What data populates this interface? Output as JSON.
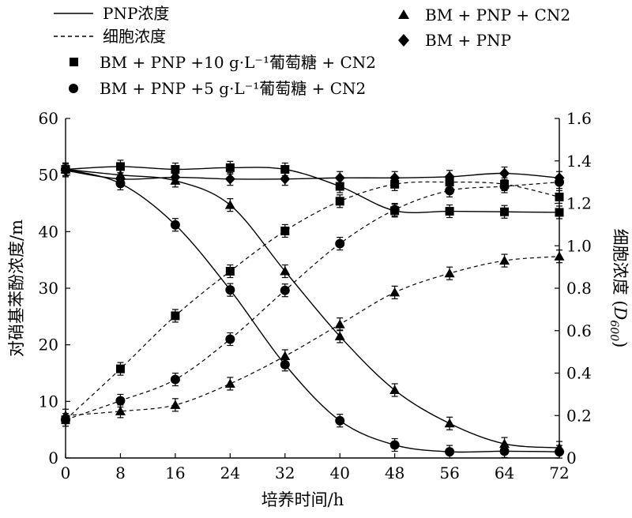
{
  "chart_data": {
    "type": "line",
    "title": "",
    "xlabel": "培养时间/h",
    "ylabel": "对硝基苯酚浓度/m",
    "ylabel_right_prefix": "细胞浓度 (",
    "ylabel_right_var": "D",
    "ylabel_right_sub": "600",
    "ylabel_right_suffix": ")",
    "xlim": [
      0,
      72
    ],
    "ylim": [
      0,
      60
    ],
    "ylim_right": [
      0,
      1.6
    ],
    "x_ticks": [
      "0",
      "8",
      "16",
      "24",
      "32",
      "40",
      "48",
      "56",
      "64",
      "72"
    ],
    "y_ticks": [
      "0",
      "10",
      "20",
      "30",
      "40",
      "50",
      "60"
    ],
    "y_right_ticks": [
      "0",
      "0.2",
      "0.4",
      "0.6",
      "0.8",
      "1.0",
      "1.2",
      "1.4",
      "1.6"
    ],
    "grid": false,
    "legend_position": "top",
    "legend": {
      "line_solid": "PNP浓度",
      "line_dashed": "细胞浓度",
      "square": "BM + PNP +10 g·L⁻¹葡萄糖 + CN2",
      "circle": "BM + PNP +5 g·L⁻¹葡萄糖 + CN2",
      "triangle": "BM + PNP + CN2",
      "diamond": "BM + PNP"
    },
    "x": [
      0,
      8,
      16,
      24,
      32,
      40,
      48,
      56,
      64,
      72
    ],
    "series": [
      {
        "marker": "square",
        "quantity": "PNP",
        "axis": "left",
        "values": [
          51.0,
          51.5,
          51.0,
          51.3,
          51.0,
          48.0,
          43.7,
          43.6,
          43.5,
          43.4
        ]
      },
      {
        "marker": "circle",
        "quantity": "PNP",
        "axis": "left",
        "values": [
          51.0,
          48.5,
          41.2,
          29.7,
          16.5,
          6.6,
          2.3,
          1.1,
          1.2,
          1.1
        ]
      },
      {
        "marker": "triangle",
        "quantity": "PNP",
        "axis": "left",
        "values": [
          51.0,
          50.0,
          49.0,
          44.7,
          33.0,
          21.5,
          12.0,
          6.1,
          2.5,
          1.8
        ]
      },
      {
        "marker": "diamond",
        "quantity": "PNP",
        "axis": "left",
        "values": [
          50.8,
          49.3,
          49.6,
          49.3,
          49.3,
          49.5,
          49.5,
          49.7,
          50.3,
          49.5
        ]
      },
      {
        "marker": "square",
        "quantity": "cell",
        "axis": "right",
        "values": [
          0.18,
          0.42,
          0.67,
          0.88,
          1.07,
          1.21,
          1.29,
          1.3,
          1.29,
          1.23
        ]
      },
      {
        "marker": "circle",
        "quantity": "cell",
        "axis": "right",
        "values": [
          0.18,
          0.27,
          0.37,
          0.56,
          0.79,
          1.01,
          1.17,
          1.26,
          1.28,
          1.3
        ]
      },
      {
        "marker": "triangle",
        "quantity": "cell",
        "axis": "right",
        "values": [
          0.2,
          0.22,
          0.25,
          0.35,
          0.48,
          0.63,
          0.78,
          0.87,
          0.93,
          0.95
        ]
      }
    ]
  }
}
